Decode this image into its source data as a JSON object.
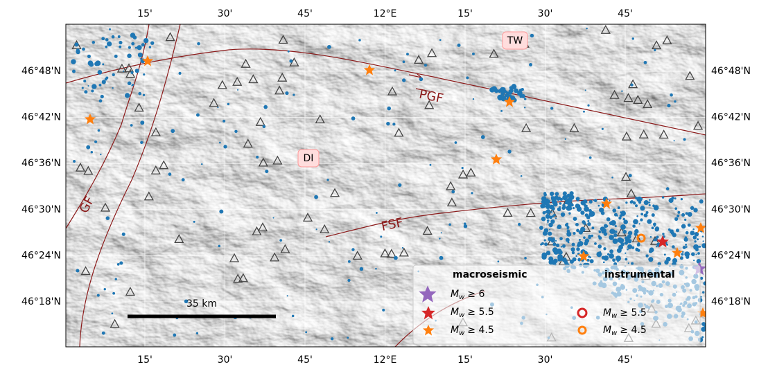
{
  "map": {
    "lon_ticks": [
      "15'",
      "30'",
      "45'",
      "12°E",
      "15'",
      "30'",
      "45'"
    ],
    "lat_ticks": [
      "46°48'N",
      "46°42'N",
      "46°36'N",
      "46°30'N",
      "46°24'N",
      "46°18'N"
    ],
    "region_labels": {
      "tw": "TW",
      "di": "DI"
    },
    "fault_labels": {
      "pgf": "PGF",
      "fsf": "FSF",
      "gf": "GF"
    },
    "scale_bar": "35 km",
    "legend": {
      "macroseismic": {
        "title": "macroseismic",
        "items": [
          {
            "symbol": "M",
            "sub": "w",
            "text": "≥ 6"
          },
          {
            "symbol": "M",
            "sub": "w",
            "text": "≥ 5.5"
          },
          {
            "symbol": "M",
            "sub": "w",
            "text": "≥ 4.5"
          }
        ]
      },
      "instrumental": {
        "title": "instrumental",
        "items": [
          {
            "symbol": "M",
            "sub": "w",
            "text": "≥ 5.5"
          },
          {
            "symbol": "M",
            "sub": "w",
            "text": "≥ 4.5"
          }
        ]
      }
    }
  }
}
